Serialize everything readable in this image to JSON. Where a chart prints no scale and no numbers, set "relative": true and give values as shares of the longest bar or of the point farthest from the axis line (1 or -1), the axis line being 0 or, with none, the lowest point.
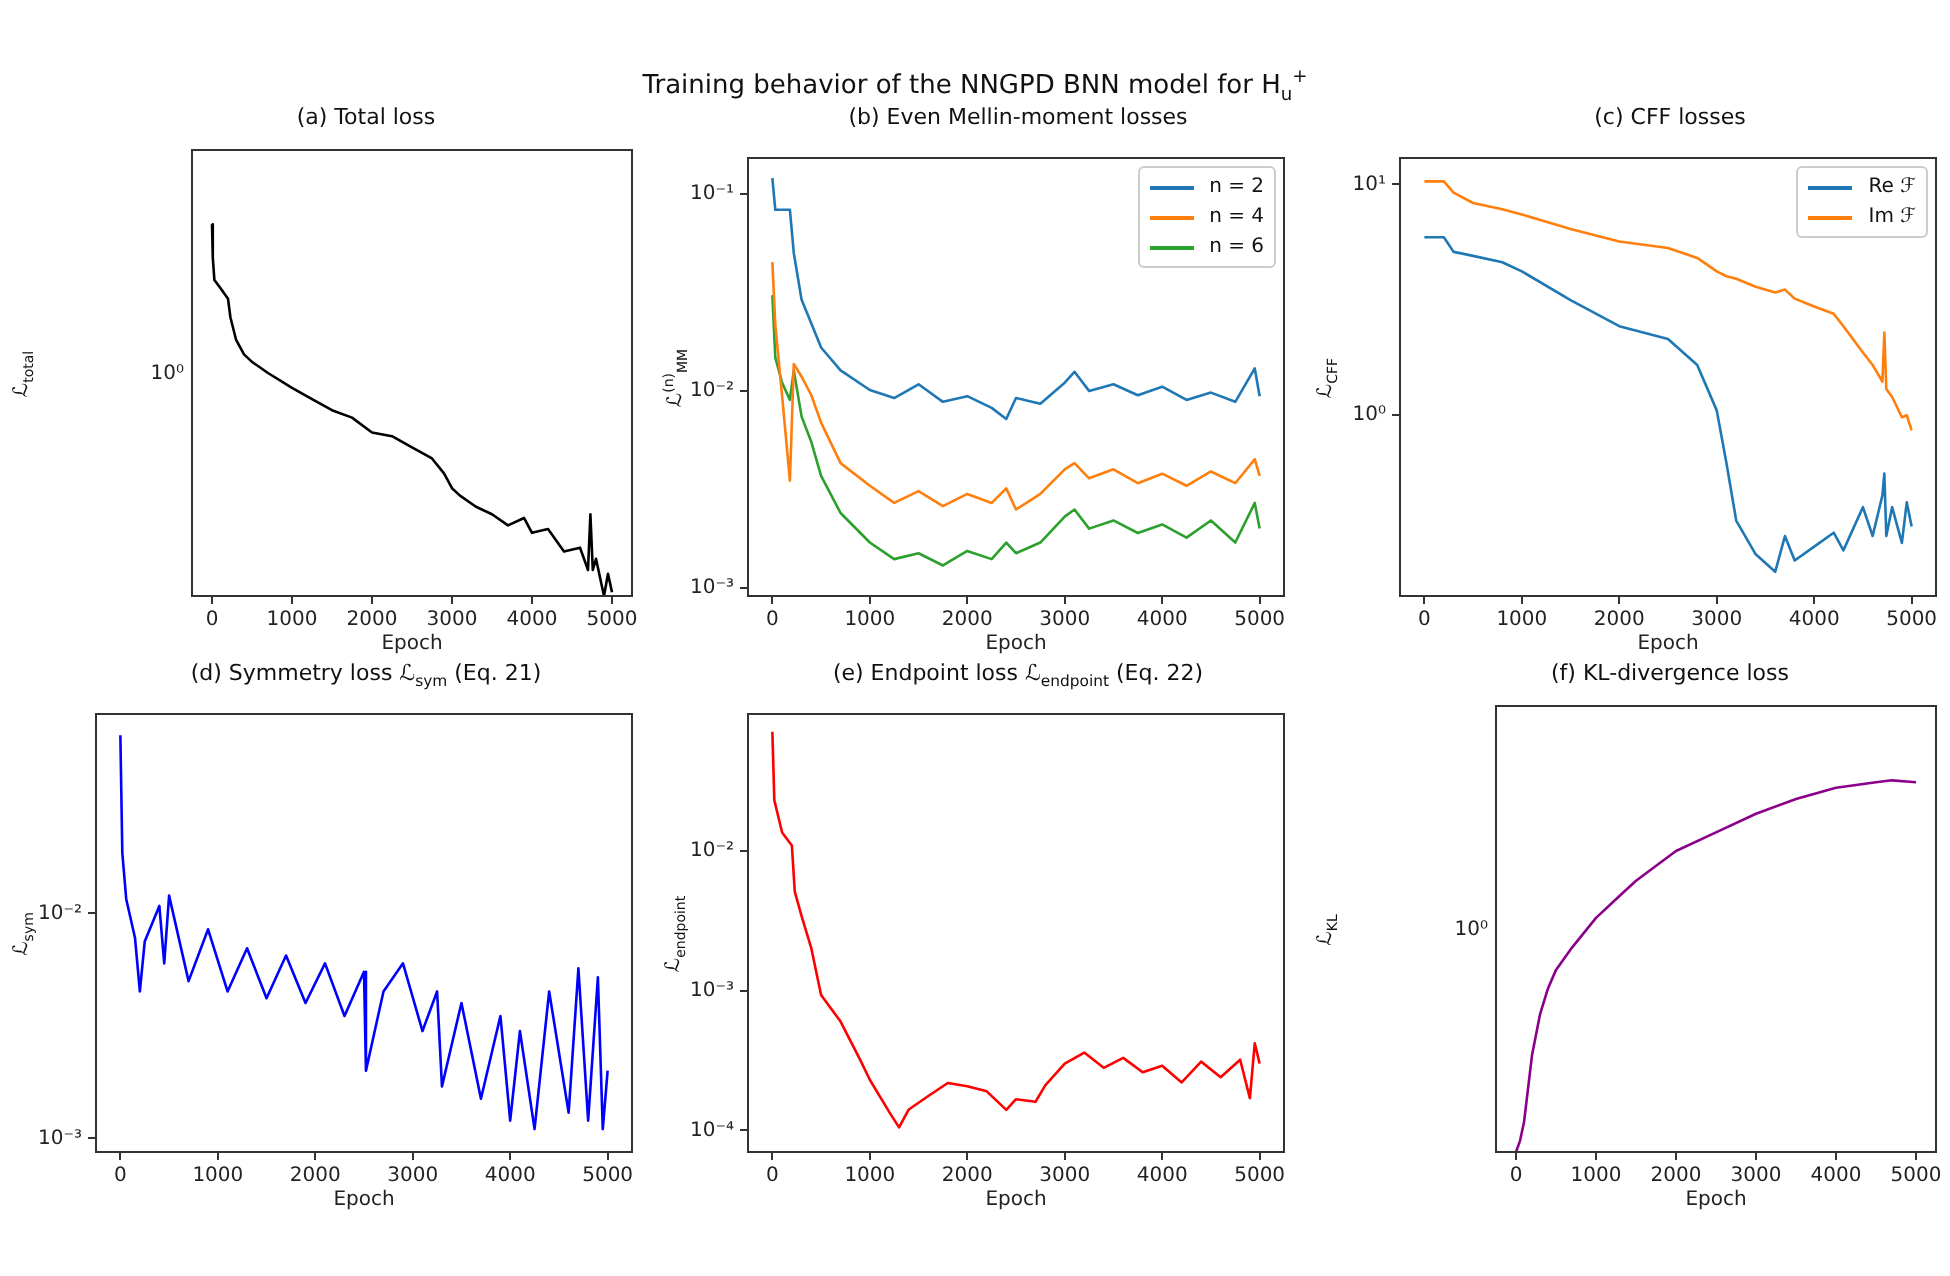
{
  "chart_data": [
    {
      "type": "line",
      "title": "(a) Total loss",
      "annotations": [
        "Training behavior of the NNGPD BNN model for H$_{u}$$^{+}$",
        "10⁰"
      ],
      "xlabel": "Epoch",
      "ylabel": "ℒ$_{total}$",
      "relative": true,
      "x": [
        0,
        10,
        30,
        100,
        200,
        230,
        300,
        400,
        500,
        700,
        1000,
        1250,
        1500,
        1750,
        2000,
        2250,
        2500,
        2750,
        2900,
        3000,
        3100,
        3300,
        3500,
        3700,
        3900,
        4000,
        4200,
        4400,
        4600,
        4700,
        4730,
        4760,
        4800,
        4900,
        4950,
        5000
      ],
      "series": [
        {
          "color": "#000000",
          "values": [
            1.0,
            0.91,
            0.85,
            0.83,
            0.8,
            0.75,
            0.69,
            0.65,
            0.63,
            0.6,
            0.56,
            0.53,
            0.5,
            0.48,
            0.44,
            0.43,
            0.4,
            0.37,
            0.33,
            0.29,
            0.27,
            0.24,
            0.22,
            0.19,
            0.21,
            0.17,
            0.18,
            0.12,
            0.13,
            0.07,
            0.22,
            0.07,
            0.1,
            0.0,
            0.06,
            0.01
          ]
        }
      ],
      "xlim": [
        -250,
        5250
      ],
      "xticks": [
        0,
        1000,
        2000,
        3000,
        4000,
        5000
      ]
    },
    {
      "type": "line",
      "title": "(b) Even Mellin-moment losses",
      "xlabel": "Epoch",
      "ylabel": "ℒ$^{(n)}$$_{MM}$",
      "log": true,
      "legend": "top right",
      "x": [
        0,
        30,
        100,
        180,
        220,
        300,
        400,
        500,
        700,
        1000,
        1250,
        1500,
        1750,
        2000,
        2250,
        2400,
        2500,
        2750,
        3000,
        3100,
        3250,
        3500,
        3750,
        4000,
        4250,
        4500,
        4750,
        4950,
        5000
      ],
      "series": [
        {
          "name": "n = 2",
          "color": "#1f77b4",
          "values": [
            0.12,
            0.083,
            0.083,
            0.083,
            0.05,
            0.029,
            0.022,
            0.0166,
            0.0127,
            0.0101,
            0.0092,
            0.0108,
            0.0088,
            0.0094,
            0.0082,
            0.0072,
            0.0092,
            0.0086,
            0.011,
            0.0125,
            0.01,
            0.0108,
            0.0095,
            0.0105,
            0.009,
            0.0098,
            0.0088,
            0.013,
            0.0094
          ]
        },
        {
          "name": "n = 4",
          "color": "#ff7f0e",
          "values": [
            0.045,
            0.0217,
            0.0094,
            0.0035,
            0.0137,
            0.0118,
            0.0095,
            0.0069,
            0.0043,
            0.0033,
            0.0027,
            0.0031,
            0.0026,
            0.003,
            0.0027,
            0.0032,
            0.0025,
            0.003,
            0.004,
            0.0043,
            0.0036,
            0.004,
            0.0034,
            0.0038,
            0.0033,
            0.0039,
            0.0034,
            0.0045,
            0.0037
          ]
        },
        {
          "name": "n = 6",
          "color": "#2ca02c",
          "values": [
            0.0306,
            0.0148,
            0.011,
            0.009,
            0.0127,
            0.0074,
            0.0055,
            0.0037,
            0.0024,
            0.0017,
            0.0014,
            0.0015,
            0.0013,
            0.00154,
            0.0014,
            0.0017,
            0.0015,
            0.0017,
            0.0023,
            0.0025,
            0.002,
            0.0022,
            0.0019,
            0.0021,
            0.0018,
            0.0022,
            0.0017,
            0.0027,
            0.002
          ]
        }
      ],
      "xlim": [
        -250,
        5250
      ],
      "xticks": [
        0,
        1000,
        2000,
        3000,
        4000,
        5000
      ],
      "ylim": [
        0.00091,
        0.152
      ],
      "yticks": [
        {
          "value": 0.001,
          "label": "10⁻³"
        },
        {
          "value": 0.01,
          "label": "10⁻²"
        },
        {
          "value": 0.1,
          "label": "10⁻¹"
        }
      ]
    },
    {
      "type": "line",
      "title": "(c) CFF losses",
      "xlabel": "Epoch",
      "ylabel": "ℒ$_{CFF}$",
      "log": true,
      "legend": "top right",
      "x": [
        0,
        200,
        300,
        500,
        800,
        1000,
        1500,
        2000,
        2500,
        2800,
        3000,
        3100,
        3200,
        3400,
        3600,
        3700,
        3800,
        4000,
        4200,
        4300,
        4500,
        4600,
        4700,
        4720,
        4740,
        4800,
        4900,
        4950,
        5000
      ],
      "series": [
        {
          "name": "Re ℱ",
          "color": "#1f77b4",
          "values": [
            5.9,
            5.9,
            5.1,
            4.9,
            4.6,
            4.2,
            3.15,
            2.43,
            2.14,
            1.65,
            1.05,
            0.62,
            0.35,
            0.25,
            0.21,
            0.3,
            0.235,
            0.27,
            0.31,
            0.26,
            0.4,
            0.3,
            0.45,
            0.56,
            0.3,
            0.4,
            0.28,
            0.42,
            0.33
          ]
        },
        {
          "name": "Im ℱ",
          "color": "#ff7f0e",
          "values": [
            10.3,
            10.3,
            9.2,
            8.3,
            7.8,
            7.4,
            6.4,
            5.65,
            5.3,
            4.8,
            4.2,
            4.0,
            3.9,
            3.6,
            3.4,
            3.5,
            3.2,
            2.96,
            2.75,
            2.43,
            1.87,
            1.65,
            1.4,
            2.28,
            1.3,
            1.2,
            0.98,
            1.0,
            0.86
          ]
        }
      ],
      "xlim": [
        -250,
        5250
      ],
      "xticks": [
        0,
        1000,
        2000,
        3000,
        4000,
        5000
      ],
      "ylim": [
        0.165,
        13
      ],
      "yticks": [
        {
          "value": 1,
          "label": "10⁰"
        },
        {
          "value": 10,
          "label": "10¹"
        }
      ]
    },
    {
      "type": "line",
      "title": "(d) Symmetry loss ℒ$_{sym}$ (Eq. 21)",
      "xlabel": "Epoch",
      "ylabel": "ℒ$_{sym}$",
      "log": true,
      "x": [
        0,
        20,
        60,
        150,
        200,
        250,
        400,
        450,
        500,
        700,
        900,
        1100,
        1300,
        1500,
        1700,
        1900,
        2100,
        2300,
        2500,
        2520,
        2700,
        2900,
        3100,
        3250,
        3300,
        3500,
        3700,
        3900,
        4000,
        4100,
        4250,
        4400,
        4600,
        4700,
        4800,
        4900,
        4950,
        5000
      ],
      "series": [
        {
          "color": "#0000ff",
          "values": [
            0.062,
            0.0186,
            0.0116,
            0.0078,
            0.0045,
            0.0075,
            0.0108,
            0.006,
            0.012,
            0.005,
            0.0085,
            0.0045,
            0.007,
            0.0042,
            0.0065,
            0.004,
            0.006,
            0.0035,
            0.0055,
            0.002,
            0.0045,
            0.006,
            0.003,
            0.0045,
            0.0017,
            0.004,
            0.0015,
            0.0035,
            0.0012,
            0.003,
            0.0011,
            0.0045,
            0.0013,
            0.0057,
            0.0012,
            0.0052,
            0.0011,
            0.002
          ]
        }
      ],
      "xlim": [
        -250,
        5250
      ],
      "xticks": [
        0,
        1000,
        2000,
        3000,
        4000,
        5000
      ],
      "ylim": [
        0.00087,
        0.077
      ],
      "yticks": [
        {
          "value": 0.001,
          "label": "10⁻³"
        },
        {
          "value": 0.01,
          "label": "10⁻²"
        }
      ]
    },
    {
      "type": "line",
      "title": "(e) Endpoint loss ℒ$_{endpoint}$ (Eq. 22)",
      "xlabel": "Epoch",
      "ylabel": "ℒ$_{endpoint}$",
      "log": true,
      "x": [
        0,
        20,
        100,
        200,
        230,
        300,
        400,
        500,
        700,
        900,
        1000,
        1200,
        1300,
        1400,
        1600,
        1800,
        2000,
        2200,
        2400,
        2500,
        2700,
        2800,
        3000,
        3200,
        3400,
        3600,
        3800,
        4000,
        4200,
        4400,
        4600,
        4800,
        4900,
        4950,
        5000
      ],
      "series": [
        {
          "color": "#ff0000",
          "values": [
            0.071,
            0.023,
            0.0135,
            0.0109,
            0.0051,
            0.0034,
            0.002,
            0.00093,
            0.0006,
            0.00032,
            0.00023,
            0.000135,
            0.000105,
            0.000141,
            0.000176,
            0.000218,
            0.000207,
            0.00019,
            0.00014,
            0.000167,
            0.00016,
            0.00021,
            0.0003,
            0.00036,
            0.00028,
            0.00033,
            0.00026,
            0.00029,
            0.00022,
            0.00031,
            0.00024,
            0.00032,
            0.00017,
            0.00042,
            0.0003
          ]
        }
      ],
      "xlim": [
        -250,
        5250
      ],
      "xticks": [
        0,
        1000,
        2000,
        3000,
        4000,
        5000
      ],
      "ylim": [
        7.33e-05,
        0.095
      ],
      "yticks": [
        {
          "value": 0.0001,
          "label": "10⁻⁴"
        },
        {
          "value": 0.001,
          "label": "10⁻³"
        },
        {
          "value": 0.01,
          "label": "10⁻²"
        }
      ]
    },
    {
      "type": "line",
      "title": "(f) KL-divergence loss",
      "annotations": [
        "10⁰"
      ],
      "xlabel": "Epoch",
      "ylabel": "ℒ$_{KL}$",
      "relative": true,
      "x": [
        0,
        50,
        100,
        200,
        300,
        400,
        500,
        700,
        1000,
        1300,
        1500,
        2000,
        2500,
        3000,
        3500,
        4000,
        4500,
        4700,
        5000
      ],
      "series": [
        {
          "color": "#8b008b",
          "values": [
            0.0,
            0.03,
            0.08,
            0.26,
            0.37,
            0.44,
            0.49,
            0.55,
            0.63,
            0.69,
            0.73,
            0.81,
            0.86,
            0.91,
            0.95,
            0.98,
            0.995,
            1.0,
            0.995
          ]
        }
      ],
      "xlim": [
        -250,
        5250
      ],
      "xticks": [
        0,
        1000,
        2000,
        3000,
        4000,
        5000
      ]
    }
  ]
}
